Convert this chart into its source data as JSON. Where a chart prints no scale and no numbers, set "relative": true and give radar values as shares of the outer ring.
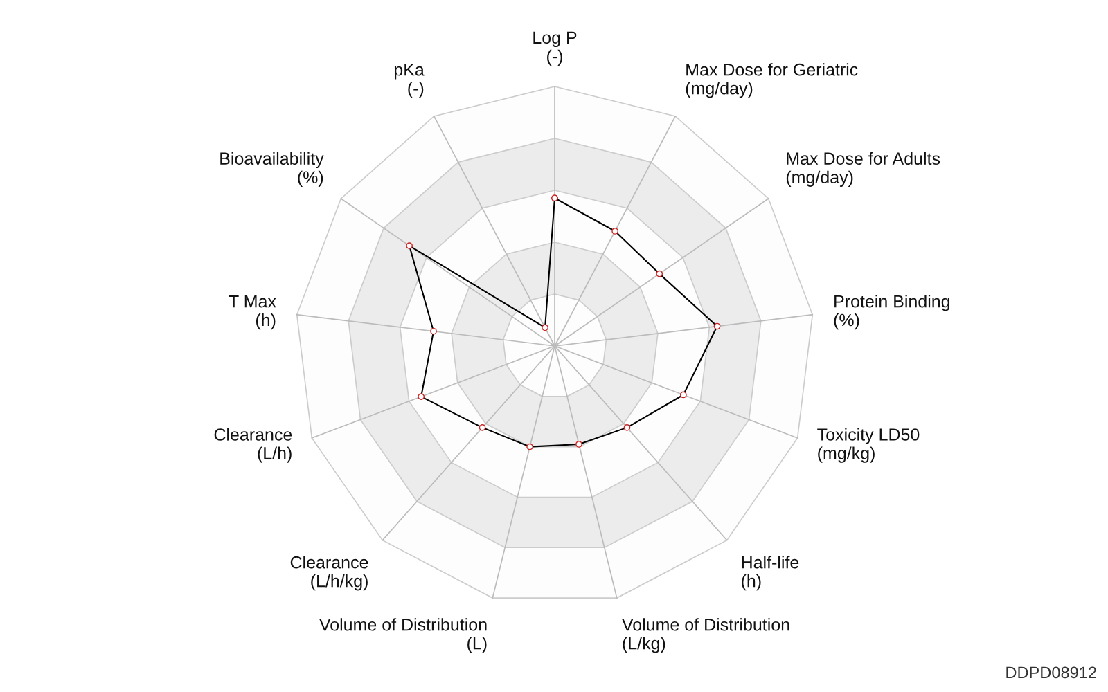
{
  "chart_data": {
    "type": "radar",
    "relative": true,
    "grid": true,
    "marker": "circle",
    "line_style": "solid",
    "legend": false,
    "categories": [
      "Log P\n(-)",
      "Max Dose for Geriatric\n(mg/day)",
      "Max Dose for Adults\n(mg/day)",
      "Protein Binding\n(%)",
      "Toxicity LD50\n(mg/kg)",
      "Half-life\n(h)",
      "Volume of Distribution\n(L/kg)",
      "Volume of Distribution\n(L)",
      "Clearance\n(L/h/kg)",
      "Clearance\n(L/h)",
      "T Max\n(h)",
      "Bioavailability\n(%)",
      "pKa\n(-)"
    ],
    "series": [
      {
        "color": "#000000",
        "values": [
          0.57,
          0.5,
          0.49,
          0.63,
          0.53,
          0.42,
          0.39,
          0.4,
          0.42,
          0.55,
          0.47,
          0.68,
          0.08
        ]
      }
    ],
    "annotations": [
      "DDPD08912"
    ]
  }
}
